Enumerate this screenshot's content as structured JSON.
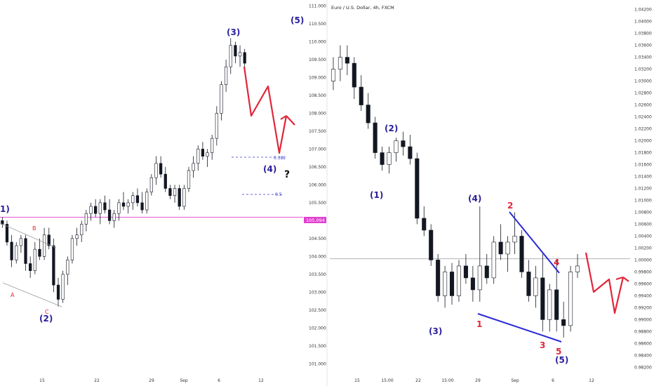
{
  "colors": {
    "up_candle": "#ffffff",
    "down_candle": "#131722",
    "wave_blue": "#2a1e9b",
    "wave_red": "#e0263a",
    "projection": "#e0263a",
    "trendline": "#2b2bd6",
    "hline_magenta": "#e040d0",
    "hline_gray": "#999999",
    "fib": "#3a3acb",
    "price_tag_bg": "#e040d0"
  },
  "chart_data": [
    {
      "type": "candlestick",
      "panel": "left",
      "title": "",
      "y_axis_labels": [
        "111.000",
        "110.500",
        "110.000",
        "109.500",
        "109.000",
        "108.500",
        "108.000",
        "107.500",
        "107.000",
        "106.500",
        "106.000",
        "105.500",
        "105.000",
        "104.500",
        "104.000",
        "103.500",
        "103.000",
        "102.500",
        "102.000",
        "101.500",
        "101.000"
      ],
      "ylim": [
        100.75,
        111.05
      ],
      "x_ticks": [
        "15",
        "22",
        "29",
        "Sep",
        "6",
        "12"
      ],
      "price_line": {
        "value": 105.094,
        "label": "105.094"
      },
      "fib_levels": [
        {
          "label": "0.382",
          "value": 106.75
        },
        {
          "label": "0.5",
          "value": 105.75
        }
      ],
      "ohlc": [
        [
          105.0,
          105.1,
          104.8,
          104.9
        ],
        [
          104.9,
          105.0,
          104.3,
          104.4
        ],
        [
          104.4,
          104.6,
          103.7,
          103.9
        ],
        [
          103.9,
          104.4,
          103.8,
          104.3
        ],
        [
          104.3,
          104.6,
          104.1,
          104.5
        ],
        [
          104.5,
          104.6,
          103.6,
          103.8
        ],
        [
          103.8,
          104.0,
          103.4,
          103.6
        ],
        [
          103.6,
          104.4,
          103.5,
          104.2
        ],
        [
          104.2,
          104.5,
          103.9,
          104.0
        ],
        [
          104.0,
          104.8,
          103.9,
          104.6
        ],
        [
          104.6,
          104.8,
          104.2,
          104.3
        ],
        [
          104.3,
          104.5,
          103.0,
          103.2
        ],
        [
          103.2,
          103.4,
          102.6,
          102.8
        ],
        [
          102.8,
          103.6,
          102.7,
          103.5
        ],
        [
          103.5,
          104.0,
          103.2,
          103.9
        ],
        [
          103.9,
          104.6,
          103.8,
          104.5
        ],
        [
          104.5,
          104.8,
          104.3,
          104.6
        ],
        [
          104.6,
          105.0,
          104.4,
          104.9
        ],
        [
          104.9,
          105.3,
          104.7,
          105.2
        ],
        [
          105.2,
          105.5,
          105.0,
          105.4
        ],
        [
          105.4,
          105.6,
          105.1,
          105.2
        ],
        [
          105.2,
          105.6,
          104.9,
          105.5
        ],
        [
          105.5,
          105.7,
          105.2,
          105.3
        ],
        [
          105.3,
          105.6,
          104.9,
          105.0
        ],
        [
          105.0,
          105.3,
          104.8,
          105.2
        ],
        [
          105.2,
          105.6,
          105.0,
          105.5
        ],
        [
          105.5,
          105.8,
          105.3,
          105.4
        ],
        [
          105.4,
          105.6,
          105.2,
          105.5
        ],
        [
          105.5,
          105.8,
          105.3,
          105.7
        ],
        [
          105.7,
          105.9,
          105.4,
          105.5
        ],
        [
          105.5,
          105.8,
          105.2,
          105.3
        ],
        [
          105.3,
          105.9,
          105.2,
          105.8
        ],
        [
          105.8,
          106.3,
          105.7,
          106.2
        ],
        [
          106.2,
          106.8,
          106.0,
          106.6
        ],
        [
          106.6,
          106.8,
          106.2,
          106.3
        ],
        [
          106.3,
          106.5,
          105.8,
          105.9
        ],
        [
          105.9,
          106.0,
          105.6,
          105.7
        ],
        [
          105.7,
          106.0,
          105.5,
          105.9
        ],
        [
          105.9,
          106.0,
          105.3,
          105.4
        ],
        [
          105.4,
          106.0,
          105.3,
          105.9
        ],
        [
          105.9,
          106.5,
          105.8,
          106.4
        ],
        [
          106.4,
          106.8,
          106.2,
          106.6
        ],
        [
          106.6,
          107.1,
          106.4,
          107.0
        ],
        [
          107.0,
          107.2,
          106.7,
          106.8
        ],
        [
          106.8,
          107.0,
          106.5,
          106.9
        ],
        [
          106.9,
          107.4,
          106.7,
          107.3
        ],
        [
          107.3,
          108.2,
          107.1,
          108.0
        ],
        [
          108.0,
          108.9,
          107.8,
          108.8
        ],
        [
          108.8,
          109.5,
          108.6,
          109.3
        ],
        [
          109.3,
          110.1,
          109.1,
          109.9
        ],
        [
          109.9,
          110.0,
          109.4,
          109.6
        ],
        [
          109.6,
          109.9,
          109.3,
          109.7
        ],
        [
          109.7,
          109.8,
          109.2,
          109.4
        ]
      ]
    },
    {
      "type": "candlestick",
      "panel": "right",
      "title": "Euro / U.S. Dollar, 4h, FXCM",
      "y_axis_labels": [
        "1.04200",
        "1.04000",
        "1.03800",
        "1.03600",
        "1.03400",
        "1.03200",
        "1.03000",
        "1.02800",
        "1.02600",
        "1.02400",
        "1.02200",
        "1.02000",
        "1.01800",
        "1.01600",
        "1.01400",
        "1.01200",
        "1.01000",
        "1.00800",
        "1.00600",
        "1.00400",
        "1.00200",
        "1.00000",
        "0.99800",
        "0.99600",
        "0.99400",
        "0.99200",
        "0.99000",
        "0.98800",
        "0.98600",
        "0.98400",
        "0.98200"
      ],
      "ylim": [
        0.9811,
        1.0429
      ],
      "x_ticks": [
        "15",
        "15:00",
        "22",
        "15:00",
        "29",
        "Sep",
        "6",
        "12"
      ],
      "price_line": {
        "value": 1.0002,
        "label": ""
      },
      "ohlc": [
        [
          1.03,
          1.034,
          1.0285,
          1.032
        ],
        [
          1.032,
          1.036,
          1.03,
          1.034
        ],
        [
          1.034,
          1.036,
          1.031,
          1.033
        ],
        [
          1.033,
          1.034,
          1.027,
          1.029
        ],
        [
          1.029,
          1.031,
          1.025,
          1.026
        ],
        [
          1.026,
          1.028,
          1.022,
          1.023
        ],
        [
          1.023,
          1.024,
          1.017,
          1.018
        ],
        [
          1.018,
          1.019,
          1.015,
          1.016
        ],
        [
          1.016,
          1.019,
          1.0145,
          1.018
        ],
        [
          1.018,
          1.0205,
          1.0165,
          1.02
        ],
        [
          1.02,
          1.0215,
          1.0175,
          1.019
        ],
        [
          1.019,
          1.021,
          1.016,
          1.017
        ],
        [
          1.017,
          1.018,
          1.006,
          1.007
        ],
        [
          1.007,
          1.009,
          1.004,
          1.005
        ],
        [
          1.005,
          1.006,
          0.999,
          1.0
        ],
        [
          1.0,
          1.001,
          0.993,
          0.994
        ],
        [
          0.994,
          0.999,
          0.992,
          0.998
        ],
        [
          0.998,
          0.9995,
          0.9925,
          0.994
        ],
        [
          0.994,
          1.0,
          0.993,
          0.999
        ],
        [
          0.999,
          1.001,
          0.996,
          0.997
        ],
        [
          0.997,
          0.999,
          0.993,
          0.995
        ],
        [
          0.995,
          1.009,
          0.993,
          0.999
        ],
        [
          0.999,
          1.001,
          0.996,
          0.997
        ],
        [
          0.997,
          1.004,
          0.996,
          1.003
        ],
        [
          1.003,
          1.006,
          1.0,
          1.001
        ],
        [
          1.001,
          1.004,
          0.998,
          1.003
        ],
        [
          1.003,
          1.008,
          1.001,
          1.004
        ],
        [
          1.004,
          1.005,
          0.997,
          0.998
        ],
        [
          0.998,
          1.0,
          0.993,
          0.994
        ],
        [
          0.994,
          0.999,
          0.992,
          0.997
        ],
        [
          0.997,
          1.001,
          0.988,
          0.99
        ],
        [
          0.99,
          0.996,
          0.988,
          0.995
        ],
        [
          0.995,
          1.0,
          0.988,
          0.99
        ],
        [
          0.99,
          0.993,
          0.987,
          0.989
        ],
        [
          0.989,
          0.999,
          0.988,
          0.998
        ],
        [
          0.998,
          1.001,
          0.997,
          0.999
        ]
      ]
    }
  ],
  "left_labels": {
    "wave_1": "1)",
    "wave_2": "(2)",
    "wave_3": "(3)",
    "wave_4": "(4)",
    "wave_5": "(5)",
    "sub_a": "A",
    "sub_b": "B",
    "sub_c": "C",
    "question": "?"
  },
  "right_labels": {
    "wave_1": "(1)",
    "wave_2": "(2)",
    "wave_3": "(3)",
    "wave_4": "(4)",
    "wave_5": "(5)",
    "red_1": "1",
    "red_2": "2",
    "red_3": "3",
    "red_4": "4",
    "red_5": "5"
  }
}
